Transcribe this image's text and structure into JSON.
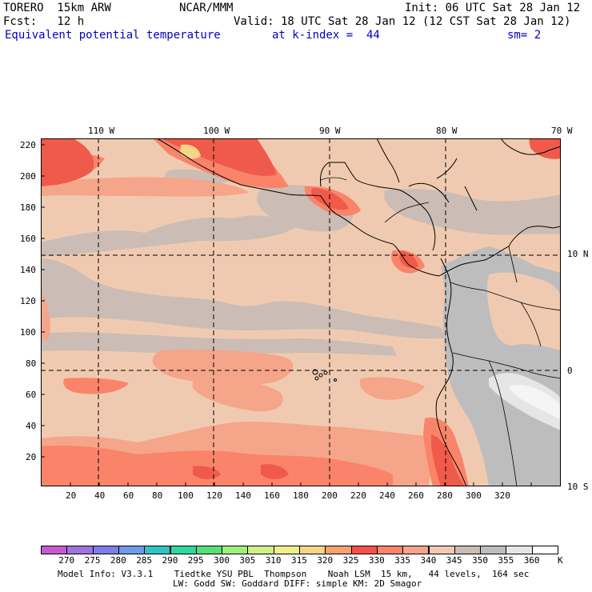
{
  "header": {
    "model_name": "TORERO  15km ARW",
    "org": "NCAR/MMM",
    "init": "Init: 06 UTC Sat 28 Jan 12",
    "fcst": "Fcst:   12 h",
    "valid": "Valid: 18 UTC Sat 28 Jan 12 (12 CST Sat 28 Jan 12)",
    "field": "Equivalent potential temperature",
    "level": "at k-index =  44",
    "smooth": "sm= 2"
  },
  "map": {
    "top_longitudes": [
      "110 W",
      "100 W",
      "90 W",
      "80 W",
      "70 W"
    ],
    "right_latitudes": [
      "10 N",
      "0",
      "10 S"
    ],
    "x_ticks": [
      "20",
      "40",
      "60",
      "80",
      "100",
      "120",
      "140",
      "160",
      "180",
      "200",
      "220",
      "240",
      "260",
      "280",
      "300",
      "320"
    ],
    "y_ticks": [
      "220",
      "200",
      "180",
      "160",
      "140",
      "120",
      "100",
      "80",
      "60",
      "40",
      "20"
    ],
    "colors": {
      "c330": "#f05a4a",
      "c335": "#f9846a",
      "c340": "#f5a58a",
      "c345": "#f0cab0",
      "c350": "#cbbdb5",
      "c355": "#bdbdbd",
      "c360": "#e6e6e6",
      "c365": "#f5f5f5"
    }
  },
  "colorbar": {
    "unit": "K",
    "labels": [
      "270",
      "275",
      "280",
      "285",
      "290",
      "295",
      "300",
      "305",
      "310",
      "315",
      "320",
      "325",
      "330",
      "335",
      "340",
      "345",
      "350",
      "355",
      "360"
    ],
    "colors": [
      "#c858d0",
      "#a072e0",
      "#7d7de8",
      "#6e9bea",
      "#2ec4c4",
      "#2ed8a0",
      "#55e07a",
      "#9ef07a",
      "#d0f08a",
      "#f0f08a",
      "#f5d58a",
      "#f9a070",
      "#f45050",
      "#f9846a",
      "#f5a58a",
      "#f0cab0",
      "#cbbdb5",
      "#bdbdbd",
      "#e6e6e6",
      "#ffffff"
    ]
  },
  "footer": {
    "line1": "Model Info: V3.3.1    Tiedtke YSU PBL  Thompson    Noah LSM  15 km,   44 levels,  164 sec",
    "line2": "LW: Godd SW: Goddard DIFF: simple KM: 2D Smagor"
  }
}
